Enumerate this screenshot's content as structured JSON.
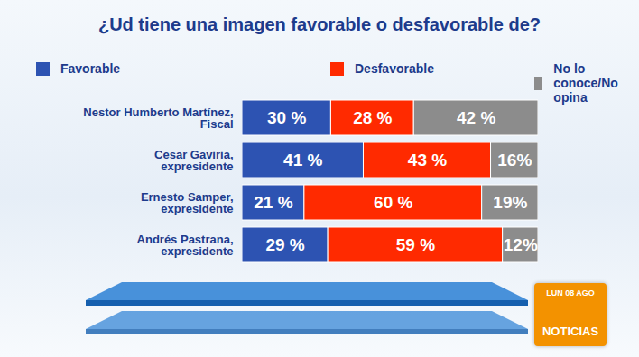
{
  "chart_data": {
    "type": "bar",
    "orientation": "horizontal",
    "stacked": true,
    "data_labels": true,
    "tick_labels": "y",
    "grid": false,
    "legend": "top",
    "title": "¿Ud tiene una imagen favorable o desfavorable de?",
    "categories": [
      "Nestor Humberto Martínez, Fiscal",
      "Cesar Gaviria, expresidente",
      "Ernesto Samper, expresidente",
      "Andrés Pastrana, expresidente"
    ],
    "xlim": [
      0,
      100
    ],
    "series": [
      {
        "name": "Favorable",
        "color": "#2d53b2",
        "values": [
          30,
          41,
          21,
          29
        ],
        "value_labels": [
          "30 %",
          "41 %",
          "21 %",
          "29 %"
        ]
      },
      {
        "name": "Desfavorable",
        "color": "#ff2a00",
        "values": [
          28,
          43,
          60,
          59
        ],
        "value_labels": [
          "28 %",
          "43 %",
          "60 %",
          "59 %"
        ]
      },
      {
        "name": "No lo conoce/No opina",
        "color": "#8c8c8c",
        "values": [
          42,
          16,
          19,
          12
        ],
        "value_labels": [
          "42 %",
          "16%",
          "19%",
          "12%"
        ]
      }
    ],
    "annotations": [
      "LUN 08 AGO",
      "NOTICIAS"
    ]
  }
}
